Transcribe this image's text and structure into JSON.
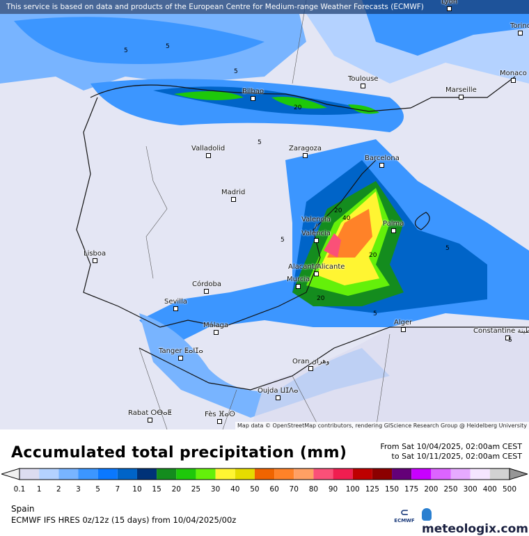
{
  "banner": "This service is based on data and products of the European Centre for Medium-range Weather Forecasts (ECMWF)",
  "attribution": "Map data © OpenStreetMap contributors, rendering GIScience Research Group @ Heidelberg University",
  "cities": [
    {
      "name": "Lyon"
    },
    {
      "name": "Torino"
    },
    {
      "name": "Monaco"
    },
    {
      "name": "Marseille"
    },
    {
      "name": "Toulouse"
    },
    {
      "name": "Bilbao"
    },
    {
      "name": "Valladolid"
    },
    {
      "name": "Zaragoza"
    },
    {
      "name": "Barcelona"
    },
    {
      "name": "Madrid"
    },
    {
      "name": "Valencia / Valencia"
    },
    {
      "name": "Palma"
    },
    {
      "name": "Lisboa"
    },
    {
      "name": "Alacant/Alicante"
    },
    {
      "name": "Murcia"
    },
    {
      "name": "Córdoba"
    },
    {
      "name": "Sevilla"
    },
    {
      "name": "Málaga"
    },
    {
      "name": "Alger"
    },
    {
      "name": "Constantine قسنطينة"
    },
    {
      "name": "Tanger ⵟⴰⵏⵊⴰ"
    },
    {
      "name": "Oran وهران"
    },
    {
      "name": "Oujda ⵡⵊⴷⴰ"
    },
    {
      "name": "Rabat ⵔⴱⴰⵟ"
    },
    {
      "name": "Fès ⴼⴰⵙ"
    }
  ],
  "contour_labels": [
    "5",
    "5",
    "5",
    "5",
    "5",
    "20",
    "20",
    "20",
    "40",
    "5",
    "5",
    "20",
    "5"
  ],
  "title": "Accumulated total precipitation (mm)",
  "period_from": "From Sat 10/04/2025, 02:00am CEST",
  "period_to": "to Sat 10/11/2025, 02:00am CEST",
  "legend": {
    "under_color": "#f0f0f0",
    "over_color": "#969696",
    "colors": [
      "#dcdcf0",
      "#b4d2ff",
      "#78b4ff",
      "#3c96ff",
      "#0a78ff",
      "#0064c8",
      "#003278",
      "#148c1e",
      "#1ec80a",
      "#64f00a",
      "#fff532",
      "#e6dc00",
      "#f06400",
      "#ff8228",
      "#ffa064",
      "#fa5078",
      "#f01e50",
      "#be0000",
      "#8c0000",
      "#640078",
      "#c800ff",
      "#dc64ff",
      "#e6aaff",
      "#f5e6ff",
      "#d2d2d2"
    ],
    "ticks": [
      "0.1",
      "1",
      "2",
      "3",
      "5",
      "7",
      "10",
      "15",
      "20",
      "25",
      "30",
      "40",
      "50",
      "60",
      "70",
      "80",
      "90",
      "100",
      "125",
      "150",
      "175",
      "200",
      "250",
      "300",
      "400",
      "500"
    ]
  },
  "region": "Spain",
  "model": "ECMWF IFS HRES 0z/12z (15 days) from  10/04/2025/00z",
  "ecmwf_logo": "ECMWF",
  "brand": "meteologix.com"
}
